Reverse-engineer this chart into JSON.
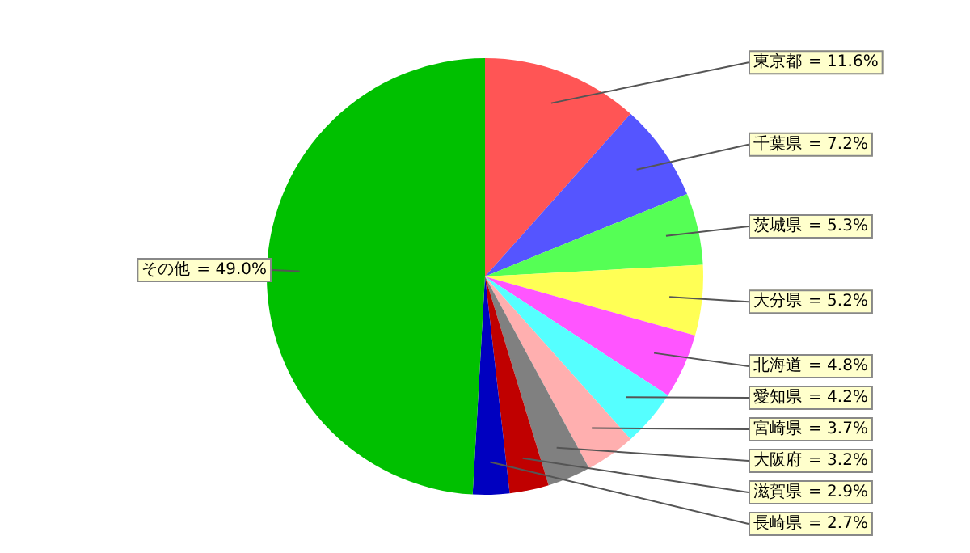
{
  "chart_data": {
    "type": "pie",
    "categories": [
      "東京都",
      "千葉県",
      "茨城県",
      "大分県",
      "北海道",
      "愛知県",
      "宮崎県",
      "大阪府",
      "滋賀県",
      "長崎県",
      "その他"
    ],
    "values": [
      11.6,
      7.2,
      5.3,
      5.2,
      4.8,
      4.2,
      3.7,
      3.2,
      2.9,
      2.7,
      49.0
    ],
    "value_labels": [
      "= 11.6%",
      "= 7.2%",
      "= 5.3%",
      "= 5.2%",
      "= 4.8%",
      "= 4.2%",
      "= 3.7%",
      "= 3.2%",
      "= 2.9%",
      "= 2.7%",
      "= 49.0%"
    ],
    "colors": [
      "#ff5555",
      "#5555ff",
      "#55ff55",
      "#ffff55",
      "#ff55ff",
      "#55ffff",
      "#ffafaf",
      "#808080",
      "#c00000",
      "#0000c0",
      "#00c000"
    ],
    "legend": false
  }
}
